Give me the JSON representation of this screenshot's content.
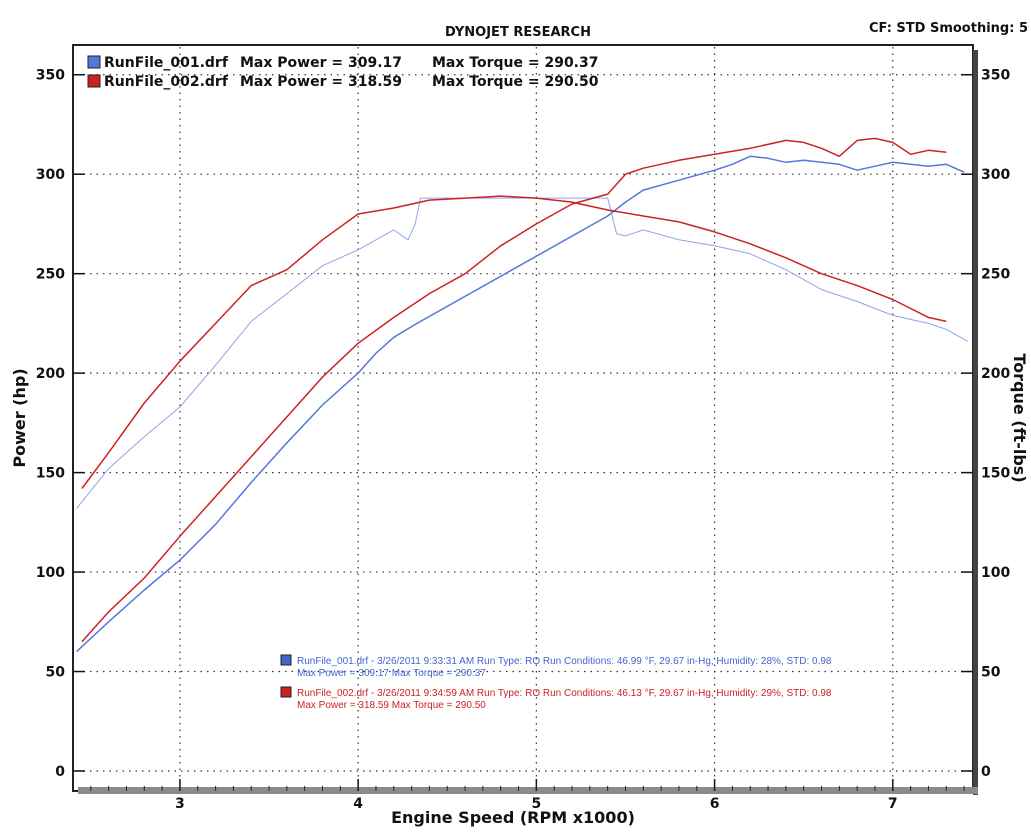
{
  "header": {
    "title": "DYNOJET RESEARCH",
    "settings": "CF: STD  Smoothing: 5"
  },
  "legend_top": [
    {
      "file": "RunFile_001.drf",
      "power_text": "Max Power = 309.17",
      "torque_text": "Max Torque = 290.37",
      "color": "#5577dd"
    },
    {
      "file": "RunFile_002.drf",
      "power_text": "Max Power = 318.59",
      "torque_text": "Max Torque = 290.50",
      "color": "#cc2222"
    }
  ],
  "run_info": [
    {
      "line1": "RunFile_001.drf - 3/26/2011 9:33:31 AM  Run Type: RO  Run Conditions: 46.99 °F, 29.67 in-Hg,  Humidity:  28%, STD: 0.98",
      "line2": "Max Power = 309.17  Max Torque = 290.37",
      "color": "#4466cc"
    },
    {
      "line1": "RunFile_002.drf - 3/26/2011 9:34:59 AM  Run Type: RO  Run Conditions: 46.13 °F, 29.67 in-Hg,  Humidity:  29%, STD: 0.98",
      "line2": "Max Power = 318.59  Max Torque = 290.50",
      "color": "#cc2222"
    }
  ],
  "chart_data": {
    "type": "line",
    "title": "DYNOJET RESEARCH",
    "xlabel": "Engine Speed (RPM x1000)",
    "ylabel": "Power (hp)",
    "y2label": "Torque (ft-lbs)",
    "xlim": [
      2.4,
      7.45
    ],
    "ylim": [
      0,
      375
    ],
    "x_ticks": [
      3,
      4,
      5,
      6,
      7
    ],
    "y_ticks": [
      0,
      50,
      100,
      150,
      200,
      250,
      300,
      350
    ],
    "y2_ticks": [
      0,
      50,
      100,
      150,
      200,
      250,
      300,
      350
    ],
    "grid": true,
    "series": [
      {
        "name": "RunFile_001.drf",
        "measure": "Power",
        "color": "#5577dd",
        "points": [
          [
            2.42,
            60
          ],
          [
            2.6,
            75
          ],
          [
            2.8,
            91
          ],
          [
            3.0,
            106
          ],
          [
            3.2,
            124
          ],
          [
            3.4,
            145
          ],
          [
            3.6,
            165
          ],
          [
            3.8,
            184
          ],
          [
            4.0,
            200
          ],
          [
            4.1,
            210
          ],
          [
            4.2,
            218
          ],
          [
            4.33,
            225
          ],
          [
            5.4,
            279
          ],
          [
            5.5,
            286
          ],
          [
            5.6,
            292
          ],
          [
            5.8,
            297
          ],
          [
            6.0,
            302
          ],
          [
            6.1,
            305
          ],
          [
            6.2,
            309
          ],
          [
            6.3,
            308
          ],
          [
            6.4,
            306
          ],
          [
            6.5,
            307
          ],
          [
            6.6,
            306
          ],
          [
            6.7,
            305
          ],
          [
            6.8,
            302
          ],
          [
            6.9,
            304
          ],
          [
            7.0,
            306
          ],
          [
            7.1,
            305
          ],
          [
            7.2,
            304
          ],
          [
            7.3,
            305
          ],
          [
            7.4,
            301
          ]
        ]
      },
      {
        "name": "RunFile_001.drf",
        "measure": "Torque",
        "color": "#8fa4e8",
        "points": [
          [
            2.42,
            132
          ],
          [
            2.6,
            152
          ],
          [
            2.8,
            168
          ],
          [
            3.0,
            183
          ],
          [
            3.2,
            204
          ],
          [
            3.4,
            226
          ],
          [
            3.6,
            240
          ],
          [
            3.8,
            254
          ],
          [
            4.0,
            262
          ],
          [
            4.1,
            267
          ],
          [
            4.2,
            272
          ],
          [
            4.28,
            267
          ],
          [
            4.32,
            275
          ],
          [
            4.35,
            288
          ],
          [
            5.4,
            288
          ],
          [
            5.45,
            270
          ],
          [
            5.5,
            269
          ],
          [
            5.6,
            272
          ],
          [
            5.8,
            267
          ],
          [
            6.0,
            264
          ],
          [
            6.2,
            260
          ],
          [
            6.4,
            252
          ],
          [
            6.6,
            242
          ],
          [
            6.8,
            236
          ],
          [
            7.0,
            229
          ],
          [
            7.2,
            225
          ],
          [
            7.3,
            222
          ],
          [
            7.42,
            216
          ]
        ]
      },
      {
        "name": "RunFile_002.drf",
        "measure": "Power",
        "color": "#cc2222",
        "points": [
          [
            2.45,
            65
          ],
          [
            2.6,
            80
          ],
          [
            2.8,
            97
          ],
          [
            3.0,
            118
          ],
          [
            3.2,
            138
          ],
          [
            3.4,
            158
          ],
          [
            3.6,
            178
          ],
          [
            3.8,
            198
          ],
          [
            4.0,
            215
          ],
          [
            4.2,
            228
          ],
          [
            4.4,
            240
          ],
          [
            4.6,
            250
          ],
          [
            4.8,
            264
          ],
          [
            5.0,
            275
          ],
          [
            5.2,
            285
          ],
          [
            5.4,
            290
          ],
          [
            5.5,
            300
          ],
          [
            5.6,
            303
          ],
          [
            5.8,
            307
          ],
          [
            6.0,
            310
          ],
          [
            6.2,
            313
          ],
          [
            6.4,
            317
          ],
          [
            6.5,
            316
          ],
          [
            6.6,
            313
          ],
          [
            6.7,
            309
          ],
          [
            6.8,
            317
          ],
          [
            6.9,
            318
          ],
          [
            7.0,
            316
          ],
          [
            7.1,
            310
          ],
          [
            7.2,
            312
          ],
          [
            7.3,
            311
          ]
        ]
      },
      {
        "name": "RunFile_002.drf",
        "measure": "Torque",
        "color": "#cc2222",
        "points": [
          [
            2.45,
            142
          ],
          [
            2.6,
            160
          ],
          [
            2.8,
            185
          ],
          [
            3.0,
            206
          ],
          [
            3.2,
            225
          ],
          [
            3.4,
            244
          ],
          [
            3.6,
            252
          ],
          [
            3.8,
            267
          ],
          [
            4.0,
            280
          ],
          [
            4.2,
            283
          ],
          [
            4.4,
            287
          ],
          [
            4.6,
            288
          ],
          [
            4.8,
            289
          ],
          [
            5.0,
            288
          ],
          [
            5.2,
            286
          ],
          [
            5.4,
            282
          ],
          [
            5.6,
            279
          ],
          [
            5.8,
            276
          ],
          [
            6.0,
            271
          ],
          [
            6.2,
            265
          ],
          [
            6.4,
            258
          ],
          [
            6.6,
            250
          ],
          [
            6.8,
            244
          ],
          [
            7.0,
            237
          ],
          [
            7.2,
            228
          ],
          [
            7.3,
            226
          ]
        ]
      }
    ]
  }
}
